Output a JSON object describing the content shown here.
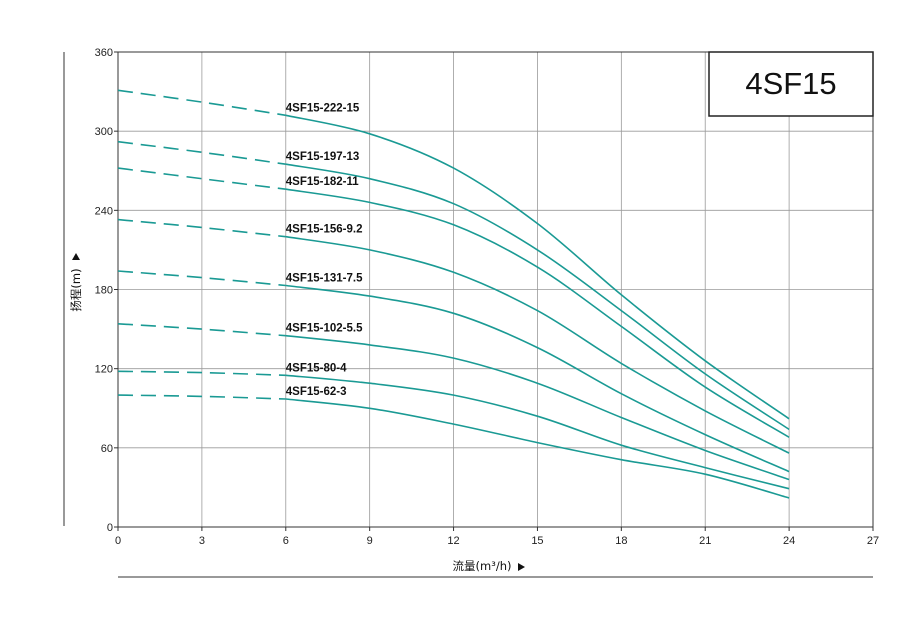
{
  "chart_data": {
    "type": "line",
    "title": "4SF15",
    "xlabel": "流量(m³/h)",
    "ylabel": "扬程(m)",
    "xlim": [
      0,
      27
    ],
    "ylim": [
      0,
      360
    ],
    "xticks": [
      0,
      3,
      6,
      9,
      12,
      15,
      18,
      21,
      24,
      27
    ],
    "yticks": [
      0,
      60,
      120,
      180,
      240,
      300,
      360
    ],
    "grid": true,
    "line_color": "#1a9a94",
    "dashed_until_x": 6,
    "x": [
      0,
      3,
      6,
      9,
      12,
      15,
      18,
      21,
      24
    ],
    "series": [
      {
        "name": "4SF15-222-15",
        "values": [
          331,
          322,
          312,
          298,
          272,
          230,
          176,
          126,
          82
        ]
      },
      {
        "name": "4SF15-197-13",
        "values": [
          292,
          284,
          275,
          264,
          245,
          210,
          164,
          116,
          74
        ]
      },
      {
        "name": "4SF15-182-11",
        "values": [
          272,
          264,
          256,
          246,
          229,
          197,
          152,
          106,
          68
        ]
      },
      {
        "name": "4SF15-156-9.2",
        "values": [
          233,
          227,
          220,
          210,
          193,
          164,
          124,
          88,
          56
        ]
      },
      {
        "name": "4SF15-131-7.5",
        "values": [
          194,
          189,
          183,
          175,
          162,
          136,
          101,
          70,
          42
        ]
      },
      {
        "name": "4SF15-102-5.5",
        "values": [
          154,
          150,
          145,
          138,
          128,
          109,
          83,
          58,
          36
        ]
      },
      {
        "name": "4SF15-80-4",
        "values": [
          118,
          117,
          115,
          109,
          100,
          84,
          62,
          45,
          29
        ]
      },
      {
        "name": "4SF15-62-3",
        "values": [
          100,
          99,
          97,
          90,
          78,
          64,
          51,
          40,
          22
        ]
      }
    ]
  }
}
